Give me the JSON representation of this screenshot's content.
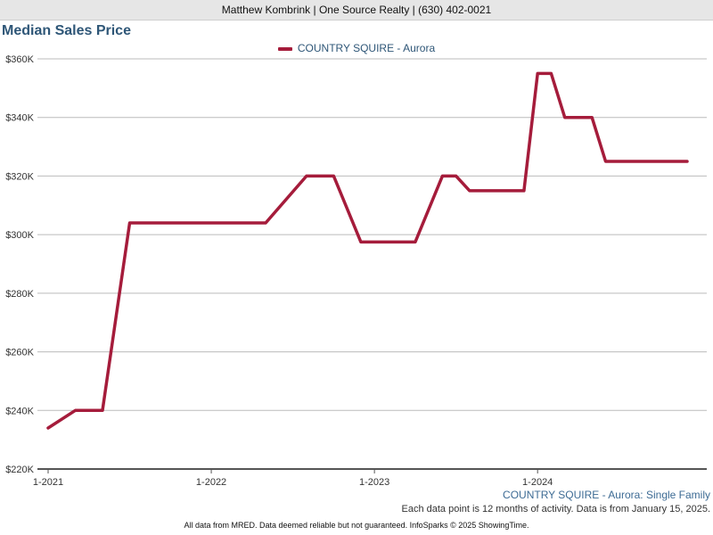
{
  "header": {
    "agent_line": "Matthew Kombrink | One Source Realty | (630) 402-0021"
  },
  "footer": {
    "source_label": "COUNTRY SQUIRE - Aurora: Single Family",
    "note": "Each data point is 12 months of activity. Data is from January 15, 2025.",
    "disclaimer": "All data from MRED. Data deemed reliable but not guaranteed. InfoSparks © 2025 ShowingTime."
  },
  "colors": {
    "series": "#a51c3b",
    "title": "#2e5677",
    "grid": "#bbbbbb"
  },
  "chart_data": {
    "type": "line",
    "title": "Median Sales Price",
    "xlabel": "",
    "ylabel": "",
    "ylim": [
      220000,
      360000
    ],
    "yticks": [
      220000,
      240000,
      260000,
      280000,
      300000,
      320000,
      340000,
      360000
    ],
    "ytick_labels": [
      "$220K",
      "$240K",
      "$260K",
      "$280K",
      "$300K",
      "$320K",
      "$340K",
      "$360K"
    ],
    "xticks": [
      "2021-01",
      "2022-01",
      "2023-01",
      "2024-01"
    ],
    "xtick_labels": [
      "1-2021",
      "1-2022",
      "1-2023",
      "1-2024"
    ],
    "grid": true,
    "legend": "top-center",
    "series": [
      {
        "name": "COUNTRY SQUIRE - Aurora",
        "x": [
          "2021-01",
          "2021-03",
          "2021-05",
          "2021-07",
          "2021-09",
          "2021-11",
          "2022-01",
          "2022-03",
          "2022-05",
          "2022-08",
          "2022-10",
          "2022-12",
          "2023-02",
          "2023-04",
          "2023-06",
          "2023-07",
          "2023-08",
          "2023-10",
          "2023-12",
          "2024-01",
          "2024-02",
          "2024-03",
          "2024-05",
          "2024-06",
          "2024-08",
          "2024-10",
          "2024-12"
        ],
        "values": [
          234000,
          240000,
          240000,
          304000,
          304000,
          304000,
          304000,
          304000,
          304000,
          320000,
          320000,
          297500,
          297500,
          297500,
          320000,
          320000,
          315000,
          315000,
          315000,
          355000,
          355000,
          340000,
          340000,
          325000,
          325000,
          325000,
          325000
        ]
      }
    ]
  }
}
